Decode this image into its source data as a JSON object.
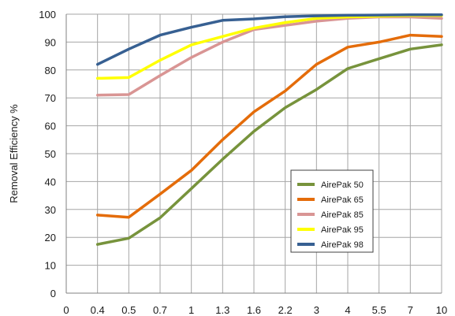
{
  "chart_data": {
    "type": "line",
    "ylabel": "Removal Efficiency %",
    "xlabel": "",
    "x_tick_labels": [
      "0",
      "0.4",
      "0.5",
      "0.7",
      "1",
      "1.3",
      "1.6",
      "2.2",
      "3",
      "4",
      "5.5",
      "7",
      "10"
    ],
    "x": [
      "0.4",
      "0.5",
      "0.7",
      "1",
      "1.3",
      "1.6",
      "2.2",
      "3",
      "4",
      "5.5",
      "7",
      "10"
    ],
    "ylim": [
      0,
      100
    ],
    "y_ticks": [
      0,
      10,
      20,
      30,
      40,
      50,
      60,
      70,
      80,
      90,
      100
    ],
    "grid": true,
    "legend_position": "lower-right",
    "series": [
      {
        "name": "AirePak 50",
        "color": "#77933c",
        "values": [
          17.5,
          19.7,
          27,
          37.5,
          48,
          58,
          66.5,
          73,
          80.5,
          84,
          87.5,
          89
        ]
      },
      {
        "name": "AirePak 65",
        "color": "#e46c0a",
        "values": [
          28,
          27.2,
          35.5,
          44,
          55,
          65,
          72.5,
          82,
          88.2,
          90,
          92.5,
          92
        ]
      },
      {
        "name": "AirePak 85",
        "color": "#d99594",
        "values": [
          71,
          71.2,
          78,
          84.5,
          90,
          94.5,
          96,
          97.5,
          98.5,
          99,
          99,
          98.5
        ]
      },
      {
        "name": "AirePak 95",
        "color": "#ffff00",
        "values": [
          77,
          77.3,
          83.5,
          89,
          92,
          95,
          97,
          98.5,
          99,
          99.3,
          99.5,
          99.5
        ]
      },
      {
        "name": "AirePak 98",
        "color": "#376092",
        "values": [
          82,
          87.5,
          92.5,
          95.3,
          97.8,
          98.3,
          99.1,
          99.4,
          99.6,
          99.7,
          99.8,
          99.8
        ]
      }
    ]
  }
}
